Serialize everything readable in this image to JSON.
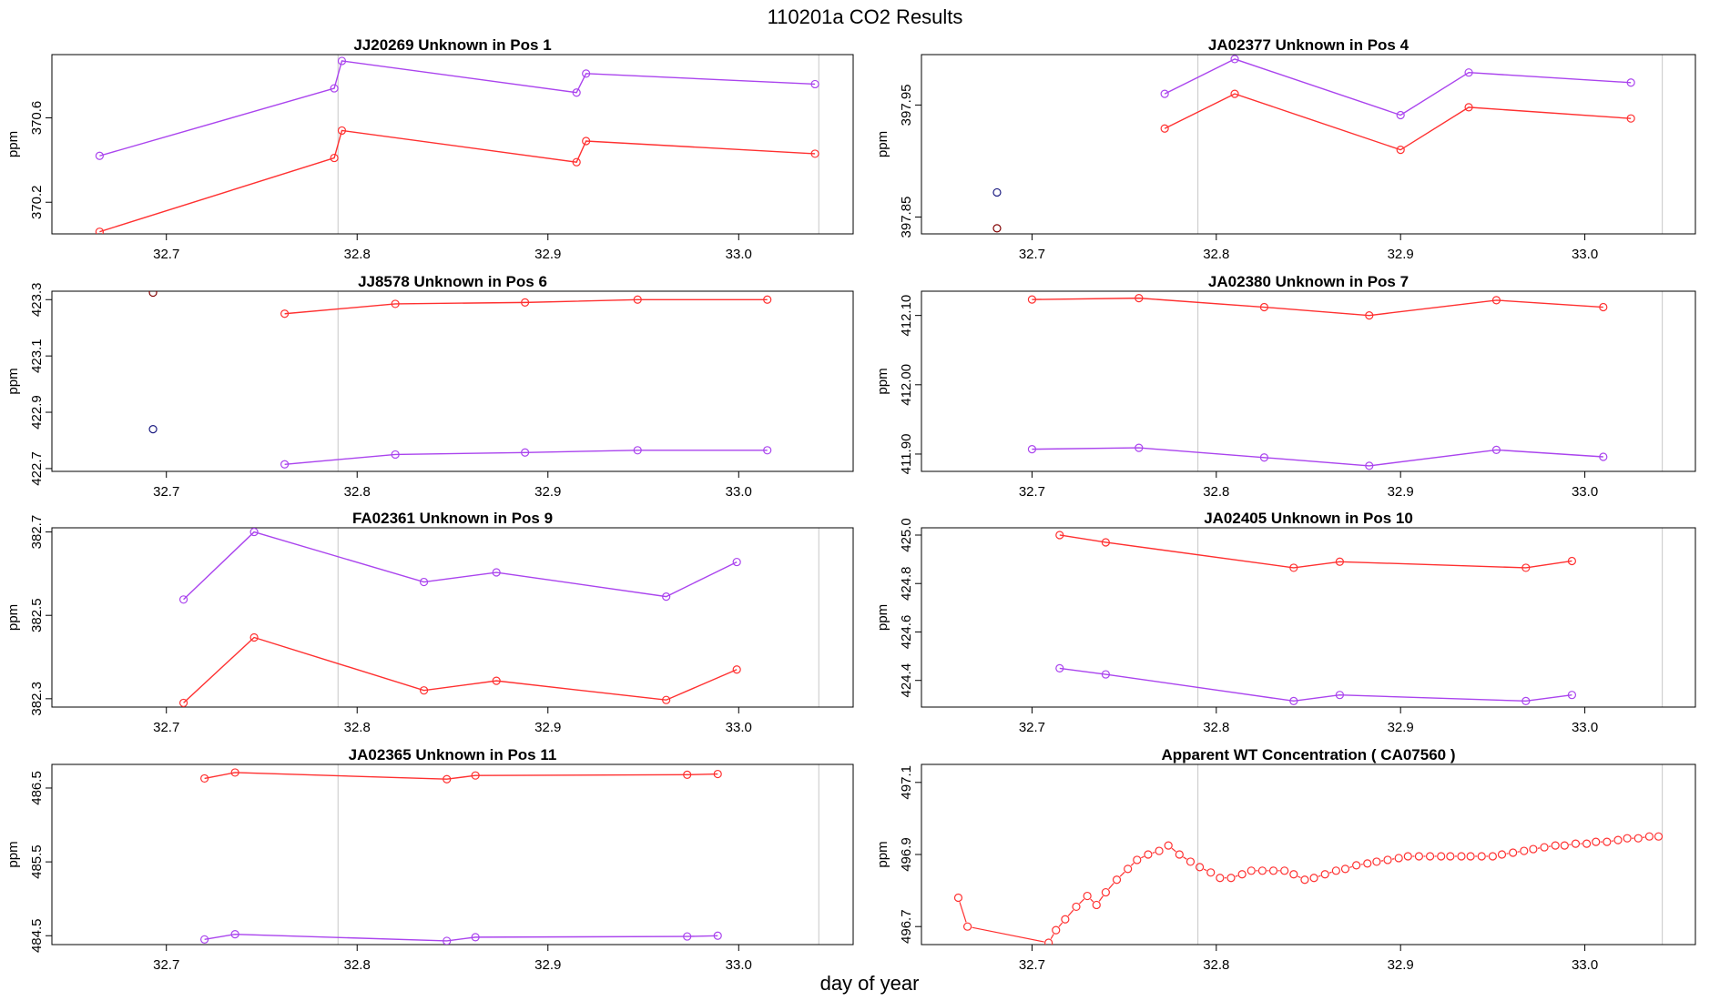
{
  "figure": {
    "title": "110201a  CO2 Results",
    "xlabel": "day of year"
  },
  "colors": {
    "series_red": "#ff3030",
    "series_purple": "#aa44ee",
    "ref_points": "#1a1a80",
    "ref_points_dark": "#800000",
    "vline": "#d0d0d0"
  },
  "chart_data": [
    {
      "type": "line",
      "title": "JJ20269    Unknown in Pos 1",
      "ylabel": "ppm",
      "xlim": [
        32.64,
        33.06
      ],
      "ylim": [
        370.05,
        370.9
      ],
      "xticks": [
        32.7,
        32.8,
        32.9,
        33.0
      ],
      "xtick_labels": [
        "32.7",
        "32.8",
        "32.9",
        "33.0"
      ],
      "yticks": [
        370.2,
        370.6
      ],
      "ytick_labels": [
        "370.2",
        "370.6"
      ],
      "vlines": [
        32.79,
        33.042
      ],
      "series": [
        {
          "name": "red",
          "color": "#ff3030",
          "style": "line",
          "x": [
            32.665,
            32.788,
            32.792,
            32.915,
            32.92,
            33.04
          ],
          "y": [
            370.06,
            370.41,
            370.54,
            370.39,
            370.49,
            370.43
          ]
        },
        {
          "name": "purple",
          "color": "#aa44ee",
          "style": "line",
          "x": [
            32.665,
            32.788,
            32.792,
            32.915,
            32.92,
            33.04
          ],
          "y": [
            370.42,
            370.74,
            370.87,
            370.72,
            370.81,
            370.76
          ]
        }
      ]
    },
    {
      "type": "line",
      "title": "JA02377    Unknown in Pos 4",
      "ylabel": "ppm",
      "xlim": [
        32.64,
        33.06
      ],
      "ylim": [
        397.835,
        397.995
      ],
      "xticks": [
        32.7,
        32.8,
        32.9,
        33.0
      ],
      "xtick_labels": [
        "32.7",
        "32.8",
        "32.9",
        "33.0"
      ],
      "yticks": [
        397.85,
        397.95
      ],
      "ytick_labels": [
        "397.85",
        "397.95"
      ],
      "vlines": [
        32.79,
        33.042
      ],
      "series": [
        {
          "name": "ref-blue",
          "color": "#1a1a80",
          "style": "points",
          "x": [
            32.681
          ],
          "y": [
            397.872
          ]
        },
        {
          "name": "ref-dark",
          "color": "#800000",
          "style": "points",
          "x": [
            32.681
          ],
          "y": [
            397.84
          ]
        },
        {
          "name": "red",
          "color": "#ff3030",
          "style": "line",
          "x": [
            32.772,
            32.81,
            32.9,
            32.937,
            33.025
          ],
          "y": [
            397.929,
            397.96,
            397.91,
            397.948,
            397.938
          ]
        },
        {
          "name": "purple",
          "color": "#aa44ee",
          "style": "line",
          "x": [
            32.772,
            32.81,
            32.9,
            32.937,
            33.025
          ],
          "y": [
            397.96,
            397.991,
            397.941,
            397.979,
            397.97
          ]
        }
      ]
    },
    {
      "type": "line",
      "title": "JJ8578    Unknown in Pos 6",
      "ylabel": "ppm",
      "xlim": [
        32.64,
        33.06
      ],
      "ylim": [
        422.69,
        423.33
      ],
      "xticks": [
        32.7,
        32.8,
        32.9,
        33.0
      ],
      "xtick_labels": [
        "32.7",
        "32.8",
        "32.9",
        "33.0"
      ],
      "yticks": [
        422.7,
        422.9,
        423.1,
        423.3
      ],
      "ytick_labels": [
        "422.7",
        "422.9",
        "423.1",
        "423.3"
      ],
      "vlines": [
        32.79
      ],
      "series": [
        {
          "name": "ref-dark",
          "color": "#800000",
          "style": "points",
          "x": [
            32.693
          ],
          "y": [
            423.325
          ]
        },
        {
          "name": "ref-blue",
          "color": "#1a1a80",
          "style": "points",
          "x": [
            32.693
          ],
          "y": [
            422.84
          ]
        },
        {
          "name": "red",
          "color": "#ff3030",
          "style": "line",
          "x": [
            32.762,
            32.82,
            32.888,
            32.947,
            33.015
          ],
          "y": [
            423.25,
            423.285,
            423.29,
            423.3,
            423.3
          ]
        },
        {
          "name": "purple",
          "color": "#aa44ee",
          "style": "line",
          "x": [
            32.762,
            32.82,
            32.888,
            32.947,
            33.015
          ],
          "y": [
            422.715,
            422.75,
            422.757,
            422.765,
            422.765
          ]
        }
      ]
    },
    {
      "type": "line",
      "title": "JA02380    Unknown in Pos 7",
      "ylabel": "ppm",
      "xlim": [
        32.64,
        33.06
      ],
      "ylim": [
        411.875,
        412.135
      ],
      "xticks": [
        32.7,
        32.8,
        32.9,
        33.0
      ],
      "xtick_labels": [
        "32.7",
        "32.8",
        "32.9",
        "33.0"
      ],
      "yticks": [
        411.9,
        412.0,
        412.1
      ],
      "ytick_labels": [
        "411.90",
        "412.00",
        "412.10"
      ],
      "vlines": [
        32.79,
        33.042
      ],
      "series": [
        {
          "name": "red",
          "color": "#ff3030",
          "style": "line",
          "x": [
            32.7,
            32.758,
            32.826,
            32.883,
            32.952,
            33.01
          ],
          "y": [
            412.123,
            412.125,
            412.112,
            412.1,
            412.122,
            412.112
          ]
        },
        {
          "name": "purple",
          "color": "#aa44ee",
          "style": "line",
          "x": [
            32.7,
            32.758,
            32.826,
            32.883,
            32.952,
            33.01
          ],
          "y": [
            411.907,
            411.909,
            411.895,
            411.883,
            411.906,
            411.896
          ]
        }
      ]
    },
    {
      "type": "line",
      "title": "FA02361    Unknown in Pos 9",
      "ylabel": "ppm",
      "xlim": [
        32.64,
        33.06
      ],
      "ylim": [
        382.28,
        382.71
      ],
      "xticks": [
        32.7,
        32.8,
        32.9,
        33.0
      ],
      "xtick_labels": [
        "32.7",
        "32.8",
        "32.9",
        "33.0"
      ],
      "yticks": [
        382.3,
        382.5,
        382.7
      ],
      "ytick_labels": [
        "382.3",
        "382.5",
        "382.7"
      ],
      "vlines": [
        32.79,
        33.042
      ],
      "series": [
        {
          "name": "red",
          "color": "#ff3030",
          "style": "line",
          "x": [
            32.709,
            32.746,
            32.835,
            32.873,
            32.962,
            32.999
          ],
          "y": [
            382.29,
            382.447,
            382.32,
            382.343,
            382.297,
            382.37
          ]
        },
        {
          "name": "purple",
          "color": "#aa44ee",
          "style": "line",
          "x": [
            32.709,
            32.746,
            32.835,
            32.873,
            32.962,
            32.999
          ],
          "y": [
            382.538,
            382.7,
            382.58,
            382.603,
            382.545,
            382.628
          ]
        }
      ]
    },
    {
      "type": "line",
      "title": "JA02405    Unknown in Pos 10",
      "ylabel": "ppm",
      "xlim": [
        32.64,
        33.06
      ],
      "ylim": [
        424.29,
        425.03
      ],
      "xticks": [
        32.7,
        32.8,
        32.9,
        33.0
      ],
      "xtick_labels": [
        "32.7",
        "32.8",
        "32.9",
        "33.0"
      ],
      "yticks": [
        424.4,
        424.6,
        424.8,
        425.0
      ],
      "ytick_labels": [
        "424.4",
        "424.6",
        "424.8",
        "425.0"
      ],
      "vlines": [
        32.79,
        33.042
      ],
      "series": [
        {
          "name": "red",
          "color": "#ff3030",
          "style": "line",
          "x": [
            32.715,
            32.74,
            32.842,
            32.867,
            32.968,
            32.993
          ],
          "y": [
            425.0,
            424.97,
            424.865,
            424.89,
            424.865,
            424.893
          ]
        },
        {
          "name": "purple",
          "color": "#aa44ee",
          "style": "line",
          "x": [
            32.715,
            32.74,
            32.842,
            32.867,
            32.968,
            32.993
          ],
          "y": [
            424.45,
            424.425,
            424.315,
            424.34,
            424.315,
            424.34
          ]
        }
      ]
    },
    {
      "type": "line",
      "title": "JA02365    Unknown in Pos 11",
      "ylabel": "ppm",
      "xlim": [
        32.64,
        33.06
      ],
      "ylim": [
        484.38,
        486.82
      ],
      "xticks": [
        32.7,
        32.8,
        32.9,
        33.0
      ],
      "xtick_labels": [
        "32.7",
        "32.8",
        "32.9",
        "33.0"
      ],
      "yticks": [
        484.5,
        485.5,
        486.5
      ],
      "ytick_labels": [
        "484.5",
        "485.5",
        "486.5"
      ],
      "vlines": [
        32.79,
        33.042
      ],
      "series": [
        {
          "name": "red",
          "color": "#ff3030",
          "style": "line",
          "x": [
            32.72,
            32.736,
            32.847,
            32.862,
            32.973,
            32.989
          ],
          "y": [
            486.63,
            486.71,
            486.62,
            486.67,
            486.68,
            486.69
          ]
        },
        {
          "name": "purple",
          "color": "#aa44ee",
          "style": "line",
          "x": [
            32.72,
            32.736,
            32.847,
            32.862,
            32.973,
            32.989
          ],
          "y": [
            484.45,
            484.52,
            484.43,
            484.48,
            484.49,
            484.5
          ]
        }
      ]
    },
    {
      "type": "scatter",
      "title": "Apparent WT Concentration ( CA07560 )",
      "ylabel": "ppm",
      "xlim": [
        32.64,
        33.06
      ],
      "ylim": [
        496.65,
        497.15
      ],
      "xticks": [
        32.7,
        32.8,
        32.9,
        33.0
      ],
      "xtick_labels": [
        "32.7",
        "32.8",
        "32.9",
        "33.0"
      ],
      "yticks": [
        496.7,
        496.9,
        497.1
      ],
      "ytick_labels": [
        "496.7",
        "496.9",
        "497.1"
      ],
      "vlines": [
        32.79,
        33.042
      ],
      "series": [
        {
          "name": "apparent-wt",
          "color": "#ff3030",
          "style": "points-dashed",
          "x": [
            32.66,
            32.665,
            32.709,
            32.713,
            32.718,
            32.724,
            32.73,
            32.735,
            32.74,
            32.746,
            32.752,
            32.757,
            32.763,
            32.769,
            32.774,
            32.78,
            32.786,
            32.791,
            32.797,
            32.802,
            32.808,
            32.814,
            32.819,
            32.825,
            32.831,
            32.837,
            32.842,
            32.848,
            32.853,
            32.859,
            32.865,
            32.87,
            32.876,
            32.882,
            32.887,
            32.893,
            32.899,
            32.904,
            32.91,
            32.916,
            32.922,
            32.927,
            32.933,
            32.938,
            32.944,
            32.95,
            32.955,
            32.961,
            32.967,
            32.972,
            32.978,
            32.984,
            32.989,
            32.995,
            33.001,
            33.006,
            33.012,
            33.018,
            33.023,
            33.029,
            33.035,
            33.04
          ],
          "y": [
            496.78,
            496.7,
            496.655,
            496.69,
            496.72,
            496.755,
            496.785,
            496.76,
            496.795,
            496.83,
            496.86,
            496.885,
            496.9,
            496.91,
            496.925,
            496.9,
            496.88,
            496.865,
            496.85,
            496.835,
            496.835,
            496.845,
            496.855,
            496.855,
            496.855,
            496.855,
            496.845,
            496.83,
            496.835,
            496.845,
            496.855,
            496.86,
            496.87,
            496.875,
            496.88,
            496.885,
            496.89,
            496.895,
            496.895,
            496.895,
            496.895,
            496.895,
            496.895,
            496.895,
            496.895,
            496.895,
            496.9,
            496.905,
            496.91,
            496.915,
            496.92,
            496.925,
            496.925,
            496.93,
            496.93,
            496.935,
            496.935,
            496.94,
            496.945,
            496.945,
            496.95,
            496.95
          ]
        }
      ]
    }
  ]
}
